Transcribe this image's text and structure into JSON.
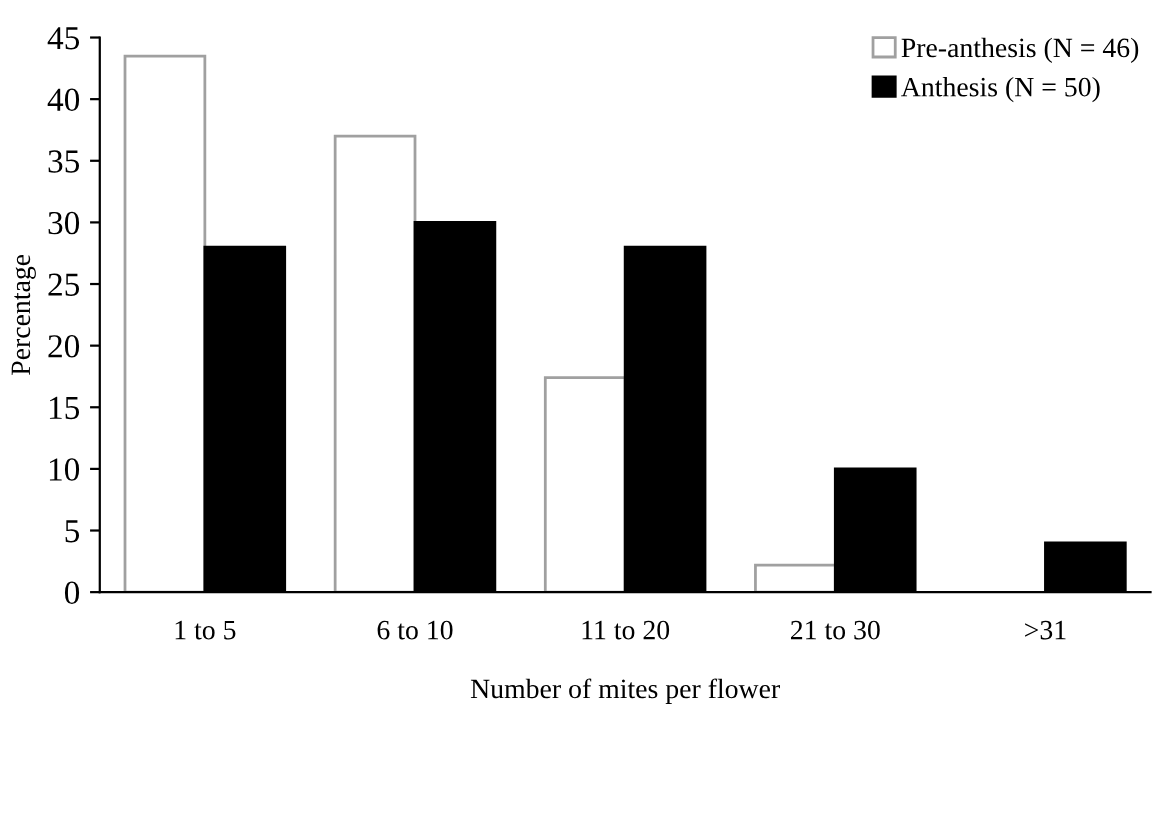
{
  "chart_data": {
    "type": "bar",
    "xlabel": "Number of mites per flower",
    "ylabel": "Percentage",
    "categories": [
      "1 to 5",
      "6 to 10",
      "11 to 20",
      "21 to 30",
      ">31"
    ],
    "series": [
      {
        "name": "Pre-anthesis (N = 46)",
        "color": "#ffffff",
        "values": [
          43.5,
          37,
          17.4,
          2.2,
          0
        ]
      },
      {
        "name": "Anthesis (N = 50)",
        "color": "#000000",
        "values": [
          28,
          30,
          28,
          10,
          4
        ]
      }
    ],
    "ylim": [
      0,
      45
    ],
    "yticks": [
      0,
      5,
      10,
      15,
      20,
      25,
      30,
      35,
      40,
      45
    ],
    "grid": false,
    "legend": "top right"
  }
}
